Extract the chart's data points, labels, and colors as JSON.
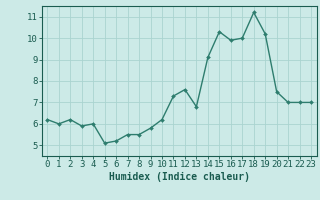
{
  "x": [
    0,
    1,
    2,
    3,
    4,
    5,
    6,
    7,
    8,
    9,
    10,
    11,
    12,
    13,
    14,
    15,
    16,
    17,
    18,
    19,
    20,
    21,
    22,
    23
  ],
  "y": [
    6.2,
    6.0,
    6.2,
    5.9,
    6.0,
    5.1,
    5.2,
    5.5,
    5.5,
    5.8,
    6.2,
    7.3,
    7.6,
    6.8,
    9.1,
    10.3,
    9.9,
    10.0,
    11.2,
    10.2,
    7.5,
    7.0,
    7.0,
    7.0
  ],
  "line_color": "#2e7d6e",
  "marker": "D",
  "markersize": 2.0,
  "linewidth": 1.0,
  "bg_color": "#cceae7",
  "grid_color": "#aad4d0",
  "xlabel": "Humidex (Indice chaleur)",
  "ylabel": "",
  "xlim": [
    -0.5,
    23.5
  ],
  "ylim": [
    4.5,
    11.5
  ],
  "xticks": [
    0,
    1,
    2,
    3,
    4,
    5,
    6,
    7,
    8,
    9,
    10,
    11,
    12,
    13,
    14,
    15,
    16,
    17,
    18,
    19,
    20,
    21,
    22,
    23
  ],
  "yticks": [
    5,
    6,
    7,
    8,
    9,
    10,
    11
  ],
  "tick_color": "#1a5c50",
  "label_color": "#1a5c50",
  "xlabel_fontsize": 7,
  "tick_fontsize": 6.5
}
